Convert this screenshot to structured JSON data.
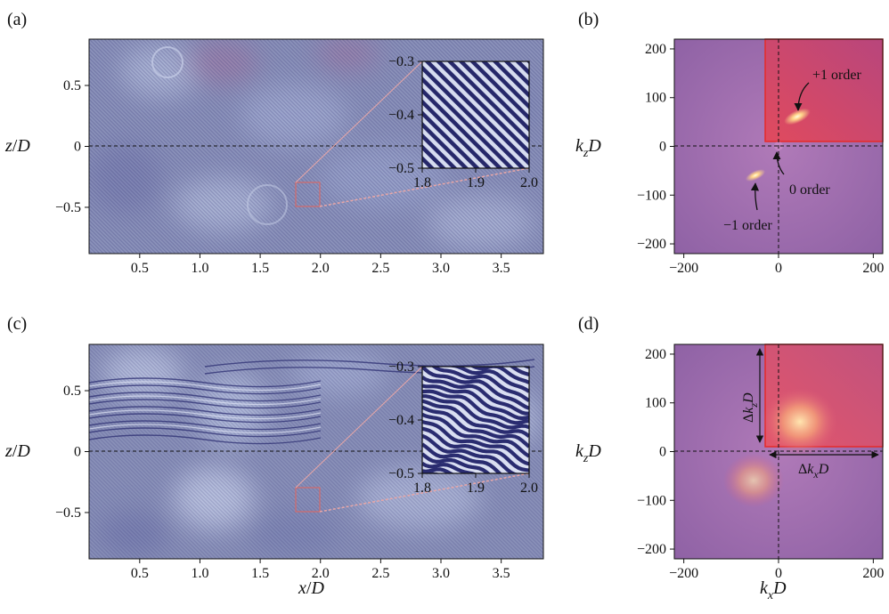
{
  "chart_data": [
    {
      "id": "a",
      "panel_label": "(a)",
      "type": "heatmap",
      "content": "interferogram",
      "xlabel": "",
      "ylabel": "z/D",
      "xlim": [
        0.08,
        3.85
      ],
      "ylim": [
        -0.88,
        0.88
      ],
      "xticks": [
        0.5,
        1.0,
        1.5,
        2.0,
        2.5,
        3.0,
        3.5
      ],
      "xtick_labels": [
        "0.5",
        "1.0",
        "1.5",
        "2.0",
        "2.5",
        "3.0",
        "3.5"
      ],
      "yticks": [
        0.5,
        0,
        -0.5
      ],
      "ytick_labels": [
        "0.5",
        "0",
        "−0.5"
      ],
      "reference_line_z": 0,
      "zoom_box": {
        "x": [
          1.8,
          2.0
        ],
        "y": [
          -0.5,
          -0.3
        ]
      },
      "inset": {
        "xlim": [
          1.8,
          2.0
        ],
        "ylim": [
          -0.5,
          -0.3
        ],
        "xticks": [
          1.8,
          1.9,
          2.0
        ],
        "xtick_labels": [
          "1.8",
          "1.9",
          "2.0"
        ],
        "yticks": [
          -0.3,
          -0.4,
          -0.5
        ],
        "ytick_labels": [
          "−0.3",
          "−0.4",
          "−0.5"
        ],
        "pattern": "regular diagonal fringes"
      },
      "colors": {
        "background": "#8a90b8",
        "fringe_dark": "#26286a",
        "fringe_light": "#d6dcef",
        "zoom_box": "#d46a6a"
      }
    },
    {
      "id": "b",
      "panel_label": "(b)",
      "type": "heatmap",
      "content": "2D Fourier spectrum",
      "xlabel": "",
      "ylabel": "k_zD",
      "xlim": [
        -220,
        220
      ],
      "ylim": [
        -220,
        220
      ],
      "xticks": [
        -200,
        0,
        200
      ],
      "xtick_labels": [
        "−200",
        "0",
        "200"
      ],
      "yticks": [
        200,
        100,
        0,
        -100,
        -200
      ],
      "ytick_labels": [
        "200",
        "100",
        "0",
        "−100",
        "−200"
      ],
      "reference_lines": {
        "x": 0,
        "y": 0
      },
      "filter_window": {
        "x": [
          -30,
          220
        ],
        "y": [
          10,
          220
        ]
      },
      "peaks": [
        {
          "label": "+1 order",
          "x": 50,
          "y": 65
        },
        {
          "label": "0 order",
          "x": 0,
          "y": 0
        },
        {
          "label": "−1 order",
          "x": -50,
          "y": -65
        }
      ],
      "colors": {
        "background": "#9f6aa8",
        "window": "#d9445c",
        "window_border": "#e62a2a",
        "peak": "#fff2b5"
      }
    },
    {
      "id": "c",
      "panel_label": "(c)",
      "type": "heatmap",
      "content": "interferogram",
      "xlabel": "x/D",
      "ylabel": "z/D",
      "xlim": [
        0.08,
        3.85
      ],
      "ylim": [
        -0.88,
        0.88
      ],
      "xticks": [
        0.5,
        1.0,
        1.5,
        2.0,
        2.5,
        3.0,
        3.5
      ],
      "xtick_labels": [
        "0.5",
        "1.0",
        "1.5",
        "2.0",
        "2.5",
        "3.0",
        "3.5"
      ],
      "yticks": [
        0.5,
        0,
        -0.5
      ],
      "ytick_labels": [
        "0.5",
        "0",
        "−0.5"
      ],
      "reference_line_z": 0,
      "zoom_box": {
        "x": [
          1.8,
          2.0
        ],
        "y": [
          -0.5,
          -0.3
        ]
      },
      "inset": {
        "xlim": [
          1.8,
          2.0
        ],
        "ylim": [
          -0.5,
          -0.3
        ],
        "xticks": [
          1.8,
          1.9,
          2.0
        ],
        "xtick_labels": [
          "1.8",
          "1.9",
          "2.0"
        ],
        "yticks": [
          -0.3,
          -0.4,
          -0.5
        ],
        "ytick_labels": [
          "−0.3",
          "−0.4",
          "−0.5"
        ],
        "pattern": "distorted wavy fringes"
      },
      "colors": {
        "background": "#8a90b8",
        "fringe_dark": "#2a2c70",
        "fringe_light": "#dde2f2",
        "zoom_box": "#d46a6a"
      }
    },
    {
      "id": "d",
      "panel_label": "(d)",
      "type": "heatmap",
      "content": "2D Fourier spectrum",
      "xlabel": "k_xD",
      "ylabel": "k_zD",
      "xlim": [
        -220,
        220
      ],
      "ylim": [
        -220,
        220
      ],
      "xticks": [
        -200,
        0,
        200
      ],
      "xtick_labels": [
        "−200",
        "0",
        "200"
      ],
      "yticks": [
        200,
        100,
        0,
        -100,
        -200
      ],
      "ytick_labels": [
        "200",
        "100",
        "0",
        "−100",
        "−200"
      ],
      "reference_lines": {
        "x": 0,
        "y": 0
      },
      "filter_window": {
        "x": [
          -30,
          220
        ],
        "y": [
          10,
          220
        ]
      },
      "peaks": [
        {
          "x": 50,
          "y": 60,
          "spread": "broad"
        },
        {
          "x": -50,
          "y": -60,
          "spread": "broad"
        }
      ],
      "dimension_labels": {
        "vertical": "Δk_zD",
        "horizontal": "Δk_xD"
      },
      "colors": {
        "background": "#9f6aa8",
        "window": "#d9445c",
        "window_border": "#e62a2a",
        "peak": "#ffe3a8"
      }
    }
  ]
}
